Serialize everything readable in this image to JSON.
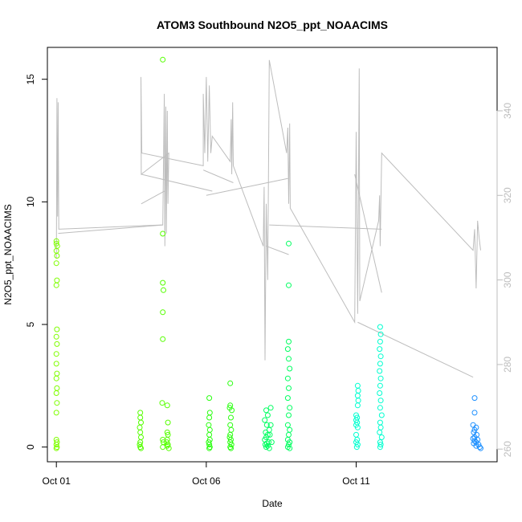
{
  "chart_data": {
    "type": "scatter",
    "title": "ATOM3 Southbound N2O5_ppt_NOAACIMS",
    "xlabel": "Date",
    "ylabel": "N2O5_ppt_NOAACIMS",
    "x_range_days": [
      0.7,
      15.7
    ],
    "x_ticks": [
      {
        "label": "Oct 01",
        "value": 1
      },
      {
        "label": "Oct 06",
        "value": 6
      },
      {
        "label": "Oct 11",
        "value": 11
      }
    ],
    "ylim": [
      -0.6,
      16.3
    ],
    "y_ticks": [
      0,
      5,
      10,
      15
    ],
    "y2lim": [
      257,
      355
    ],
    "y2_ticks": [
      260,
      280,
      300,
      320,
      340
    ],
    "colors": {
      "overlay_line": "#bdbdbd",
      "right_axis": "#bdbdbd",
      "early": "#7fff00",
      "mid": "#00ff40",
      "late": "#00ffff",
      "end": "#1e90ff"
    },
    "series": [
      {
        "color": "#7fff00",
        "points": [
          [
            1.0,
            8.4
          ],
          [
            1.0,
            8.3
          ],
          [
            1.03,
            8.2
          ],
          [
            1.0,
            8.0
          ],
          [
            1.02,
            7.8
          ],
          [
            1.0,
            7.5
          ],
          [
            1.02,
            6.8
          ],
          [
            1.0,
            6.6
          ],
          [
            1.02,
            4.8
          ],
          [
            1.0,
            4.5
          ],
          [
            1.02,
            4.2
          ],
          [
            1.0,
            3.8
          ],
          [
            1.0,
            3.4
          ],
          [
            1.02,
            3.0
          ],
          [
            1.0,
            2.8
          ],
          [
            1.02,
            2.4
          ],
          [
            1.0,
            2.2
          ],
          [
            1.02,
            1.8
          ],
          [
            1.0,
            1.4
          ],
          [
            1.0,
            0.3
          ],
          [
            1.02,
            0.2
          ],
          [
            1.0,
            0.1
          ],
          [
            1.02,
            0.0
          ],
          [
            1.0,
            -0.05
          ]
        ]
      },
      {
        "color": "#55ff00",
        "points": [
          [
            3.8,
            1.4
          ],
          [
            3.8,
            1.2
          ],
          [
            3.82,
            1.0
          ],
          [
            3.78,
            0.8
          ],
          [
            3.8,
            0.6
          ],
          [
            3.82,
            0.4
          ],
          [
            3.8,
            0.2
          ],
          [
            3.78,
            0.1
          ],
          [
            3.8,
            0.0
          ],
          [
            3.82,
            -0.05
          ],
          [
            4.55,
            15.8
          ],
          [
            4.55,
            8.7
          ],
          [
            4.55,
            6.7
          ],
          [
            4.57,
            6.4
          ],
          [
            4.55,
            5.5
          ],
          [
            4.55,
            4.4
          ],
          [
            4.53,
            1.8
          ],
          [
            4.55,
            0.3
          ],
          [
            4.57,
            0.2
          ],
          [
            4.55,
            0.0
          ],
          [
            4.7,
            1.7
          ],
          [
            4.72,
            1.0
          ],
          [
            4.7,
            0.6
          ],
          [
            4.72,
            0.5
          ],
          [
            4.7,
            0.3
          ],
          [
            4.72,
            0.1
          ],
          [
            4.7,
            0.05
          ],
          [
            4.75,
            -0.05
          ],
          [
            4.68,
            0.2
          ]
        ]
      },
      {
        "color": "#2aff10",
        "points": [
          [
            6.1,
            2.0
          ],
          [
            6.12,
            1.4
          ],
          [
            6.1,
            1.2
          ],
          [
            6.08,
            0.9
          ],
          [
            6.12,
            0.7
          ],
          [
            6.1,
            0.5
          ],
          [
            6.12,
            0.3
          ],
          [
            6.08,
            0.2
          ],
          [
            6.1,
            0.1
          ],
          [
            6.12,
            0.0
          ],
          [
            6.1,
            -0.05
          ],
          [
            6.8,
            2.6
          ],
          [
            6.8,
            1.7
          ],
          [
            6.78,
            1.6
          ],
          [
            6.85,
            1.5
          ],
          [
            6.82,
            1.2
          ],
          [
            6.8,
            0.9
          ],
          [
            6.83,
            0.7
          ],
          [
            6.8,
            0.5
          ],
          [
            6.78,
            0.4
          ],
          [
            6.82,
            0.3
          ],
          [
            6.8,
            0.2
          ],
          [
            6.84,
            0.1
          ],
          [
            6.8,
            0.0
          ],
          [
            6.82,
            -0.05
          ]
        ]
      },
      {
        "color": "#00ff60",
        "points": [
          [
            8.0,
            1.5
          ],
          [
            8.05,
            1.3
          ],
          [
            7.95,
            1.1
          ],
          [
            8.02,
            0.9
          ],
          [
            8.1,
            0.7
          ],
          [
            7.98,
            0.6
          ],
          [
            8.05,
            0.5
          ],
          [
            8.0,
            0.4
          ],
          [
            7.95,
            0.3
          ],
          [
            8.08,
            0.2
          ],
          [
            8.02,
            0.15
          ],
          [
            7.97,
            0.1
          ],
          [
            8.05,
            0.05
          ],
          [
            8.0,
            0.0
          ],
          [
            8.1,
            -0.05
          ],
          [
            8.15,
            1.6
          ],
          [
            8.15,
            0.9
          ],
          [
            8.12,
            0.5
          ],
          [
            8.18,
            0.2
          ],
          [
            8.75,
            8.3
          ],
          [
            8.75,
            6.6
          ],
          [
            8.75,
            4.3
          ],
          [
            8.72,
            4.0
          ],
          [
            8.75,
            3.6
          ],
          [
            8.78,
            3.2
          ],
          [
            8.72,
            2.8
          ],
          [
            8.75,
            2.4
          ],
          [
            8.72,
            2.0
          ],
          [
            8.78,
            1.6
          ],
          [
            8.75,
            1.3
          ],
          [
            8.72,
            0.9
          ],
          [
            8.78,
            0.7
          ],
          [
            8.75,
            0.5
          ],
          [
            8.72,
            0.3
          ],
          [
            8.78,
            0.2
          ],
          [
            8.75,
            0.1
          ],
          [
            8.72,
            0.0
          ],
          [
            8.78,
            -0.05
          ]
        ]
      },
      {
        "color": "#00ffd0",
        "points": [
          [
            11.05,
            2.5
          ],
          [
            11.07,
            2.3
          ],
          [
            11.05,
            2.1
          ],
          [
            11.07,
            1.9
          ],
          [
            11.05,
            1.7
          ],
          [
            11.0,
            1.3
          ],
          [
            11.03,
            1.2
          ],
          [
            11.0,
            1.1
          ],
          [
            11.03,
            1.0
          ],
          [
            11.0,
            0.9
          ],
          [
            11.05,
            0.8
          ],
          [
            11.0,
            0.5
          ],
          [
            11.03,
            0.3
          ],
          [
            11.0,
            0.2
          ],
          [
            11.05,
            0.1
          ],
          [
            11.02,
            0.0
          ],
          [
            11.8,
            4.9
          ],
          [
            11.82,
            4.6
          ],
          [
            11.8,
            4.3
          ],
          [
            11.78,
            4.0
          ],
          [
            11.82,
            3.7
          ],
          [
            11.8,
            3.4
          ],
          [
            11.78,
            3.1
          ],
          [
            11.82,
            2.8
          ],
          [
            11.8,
            2.5
          ],
          [
            11.78,
            2.2
          ],
          [
            11.82,
            1.9
          ],
          [
            11.8,
            1.6
          ],
          [
            11.85,
            1.3
          ],
          [
            11.8,
            1.0
          ],
          [
            11.82,
            0.8
          ],
          [
            11.78,
            0.6
          ],
          [
            11.85,
            0.4
          ],
          [
            11.8,
            0.2
          ],
          [
            11.82,
            0.1
          ],
          [
            11.8,
            0.0
          ]
        ]
      },
      {
        "color": "#1e90ff",
        "points": [
          [
            14.95,
            2.0
          ],
          [
            14.95,
            1.4
          ],
          [
            14.9,
            0.9
          ],
          [
            15.0,
            0.8
          ],
          [
            14.95,
            0.7
          ],
          [
            14.92,
            0.6
          ],
          [
            15.02,
            0.5
          ],
          [
            14.95,
            0.4
          ],
          [
            14.9,
            0.35
          ],
          [
            15.05,
            0.3
          ],
          [
            14.95,
            0.25
          ],
          [
            15.0,
            0.2
          ],
          [
            14.92,
            0.15
          ],
          [
            15.08,
            0.1
          ],
          [
            15.0,
            0.05
          ],
          [
            15.12,
            0.0
          ],
          [
            15.15,
            -0.05
          ]
        ]
      }
    ],
    "overlay_line": {
      "color": "#bdbdbd",
      "axis": "right",
      "points": [
        [
          1.0,
          305
        ],
        [
          1.02,
          343
        ],
        [
          1.04,
          315
        ],
        [
          1.06,
          342
        ],
        [
          1.08,
          312
        ],
        [
          4.5,
          313
        ],
        [
          4.55,
          313
        ],
        [
          4.6,
          344
        ],
        [
          4.62,
          308
        ],
        [
          4.65,
          341
        ],
        [
          4.67,
          311
        ],
        [
          4.7,
          340
        ],
        [
          4.72,
          318
        ],
        [
          4.75,
          330
        ],
        [
          3.83,
          325
        ],
        [
          3.82,
          348
        ],
        [
          3.85,
          330
        ],
        [
          5.9,
          327
        ],
        [
          5.9,
          344
        ],
        [
          5.95,
          330
        ],
        [
          6.0,
          348
        ],
        [
          6.05,
          328
        ],
        [
          6.1,
          346
        ],
        [
          6.15,
          330
        ],
        [
          6.2,
          334
        ],
        [
          6.8,
          328
        ],
        [
          6.83,
          338
        ],
        [
          6.85,
          325
        ],
        [
          6.88,
          342
        ],
        [
          6.9,
          327
        ],
        [
          7.9,
          308
        ],
        [
          7.93,
          322
        ],
        [
          7.96,
          281
        ],
        [
          8.0,
          318
        ],
        [
          8.05,
          300
        ],
        [
          8.1,
          352
        ],
        [
          8.68,
          330
        ],
        [
          8.72,
          336
        ],
        [
          8.75,
          318
        ],
        [
          8.78,
          337
        ],
        [
          8.8,
          317
        ],
        [
          10.95,
          290
        ],
        [
          11.0,
          335
        ],
        [
          11.05,
          292
        ],
        [
          11.1,
          350
        ],
        [
          11.12,
          295
        ],
        [
          11.75,
          314
        ],
        [
          11.78,
          320
        ],
        [
          11.8,
          308
        ],
        [
          11.85,
          330
        ],
        [
          14.9,
          307
        ],
        [
          14.95,
          312
        ],
        [
          15.0,
          298
        ],
        [
          15.05,
          314
        ],
        [
          15.1,
          310
        ],
        [
          15.15,
          307
        ]
      ],
      "segments": [
        [
          [
            1.06,
            311
          ],
          [
            4.55,
            313
          ]
        ],
        [
          [
            3.83,
            325
          ],
          [
            6.2,
            321
          ]
        ],
        [
          [
            3.83,
            318
          ],
          [
            4.6,
            321
          ]
        ],
        [
          [
            5.9,
            326
          ],
          [
            6.9,
            323
          ]
        ],
        [
          [
            6.0,
            320
          ],
          [
            8.72,
            324
          ]
        ],
        [
          [
            8.0,
            308
          ],
          [
            8.75,
            306
          ]
        ],
        [
          [
            8.1,
            313
          ],
          [
            11.85,
            312
          ]
        ],
        [
          [
            11.05,
            290
          ],
          [
            14.9,
            277
          ]
        ],
        [
          [
            10.95,
            325
          ],
          [
            11.85,
            297
          ]
        ]
      ]
    }
  }
}
